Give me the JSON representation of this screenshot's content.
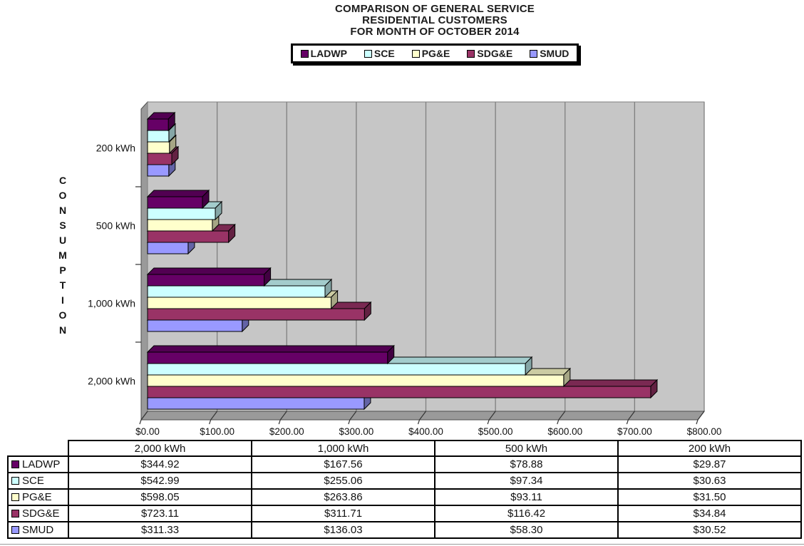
{
  "title": {
    "line1": "COMPARISON OF GENERAL SERVICE",
    "line2": "RESIDENTIAL CUSTOMERS",
    "line3": "FOR MONTH OF OCTOBER 2014"
  },
  "colors": {
    "plot_bg": "#c6c6c6",
    "wall": "#9a9a9a",
    "grid": "#7f7f7f",
    "axis": "#333333",
    "text": "#111111"
  },
  "chart_data": {
    "type": "bar",
    "orientation": "horizontal",
    "style": "3d",
    "title": "COMPARISON OF GENERAL SERVICE RESIDENTIAL CUSTOMERS FOR MONTH OF OCTOBER 2014",
    "category_axis_label": "CONSUMPTION",
    "categories": [
      "200 kWh",
      "500 kWh",
      "1,000 kWh",
      "2,000 kWh"
    ],
    "value_axis_ticks": [
      "$0.00",
      "$100.00",
      "$200.00",
      "$300.00",
      "$400.00",
      "$500.00",
      "$600.00",
      "$700.00",
      "$800.00"
    ],
    "value_axis_range": [
      0,
      800
    ],
    "grid": true,
    "legend_position": "top",
    "series": [
      {
        "name": "LADWP",
        "color": "#660066",
        "values": [
          29.87,
          78.88,
          167.56,
          344.92
        ]
      },
      {
        "name": "SCE",
        "color": "#ccffff",
        "values": [
          30.63,
          97.34,
          255.06,
          542.99
        ]
      },
      {
        "name": "PG&E",
        "color": "#ffffcc",
        "values": [
          31.5,
          93.11,
          263.86,
          598.05
        ]
      },
      {
        "name": "SDG&E",
        "color": "#993366",
        "values": [
          34.84,
          116.42,
          311.71,
          723.11
        ]
      },
      {
        "name": "SMUD",
        "color": "#9999ff",
        "values": [
          30.52,
          58.3,
          136.03,
          311.33
        ]
      }
    ]
  },
  "table": {
    "columns": [
      "2,000 kWh",
      "1,000 kWh",
      "500 kWh",
      "200 kWh"
    ],
    "rows": [
      {
        "name": "LADWP",
        "color": "#660066",
        "values": [
          "$344.92",
          "$167.56",
          "$78.88",
          "$29.87"
        ]
      },
      {
        "name": "SCE",
        "color": "#ccffff",
        "values": [
          "$542.99",
          "$255.06",
          "$97.34",
          "$30.63"
        ]
      },
      {
        "name": "PG&E",
        "color": "#ffffcc",
        "values": [
          "$598.05",
          "$263.86",
          "$93.11",
          "$31.50"
        ]
      },
      {
        "name": "SDG&E",
        "color": "#993366",
        "values": [
          "$723.11",
          "$311.71",
          "$116.42",
          "$34.84"
        ]
      },
      {
        "name": "SMUD",
        "color": "#9999ff",
        "values": [
          "$311.33",
          "$136.03",
          "$58.30",
          "$30.52"
        ]
      }
    ]
  }
}
